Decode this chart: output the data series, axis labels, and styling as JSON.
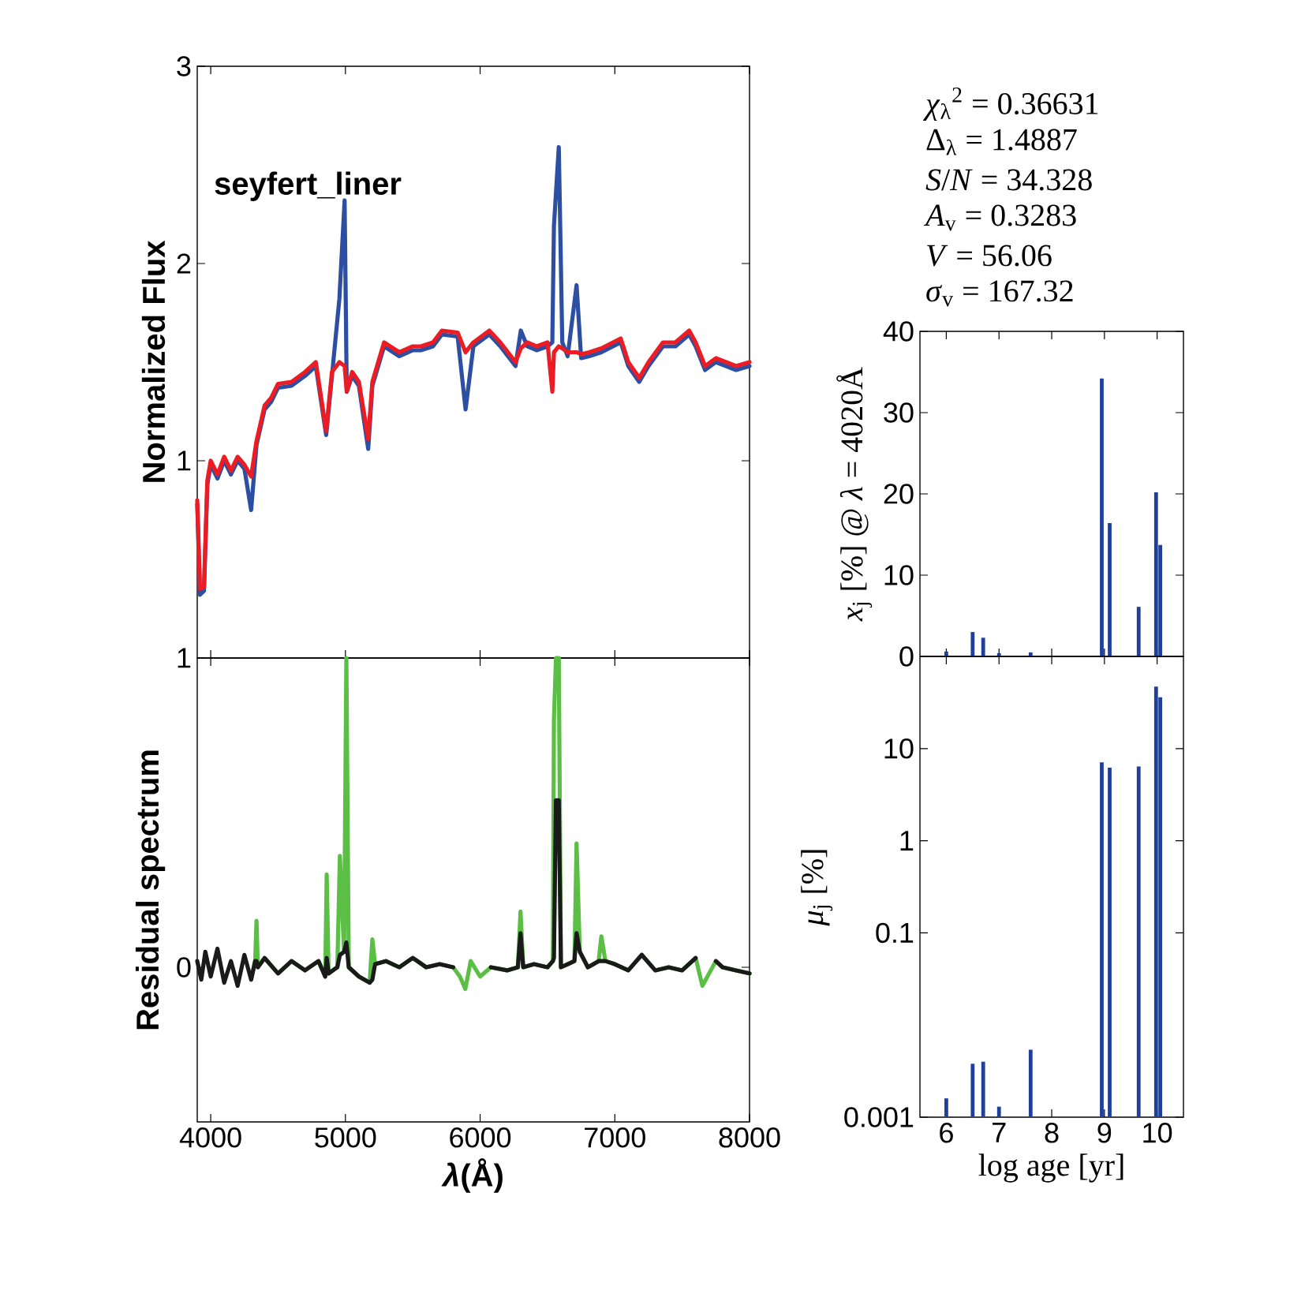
{
  "chart_data": [
    {
      "type": "line",
      "ylabel": "Normalized Flux",
      "annotations": [
        "seyfert_liner"
      ],
      "x": [
        3900,
        3920,
        3950,
        3975,
        4000,
        4050,
        4100,
        4150,
        4200,
        4250,
        4300,
        4340,
        4400,
        4450,
        4500,
        4600,
        4700,
        4780,
        4857,
        4900,
        4955,
        4994,
        5010,
        5050,
        5100,
        5169,
        5200,
        5287,
        5400,
        5500,
        5560,
        5650,
        5716,
        5833,
        5892,
        5950,
        6068,
        6150,
        6263,
        6302,
        6350,
        6419,
        6500,
        6536,
        6548,
        6584,
        6610,
        6650,
        6716,
        6750,
        6810,
        6900,
        7044,
        7100,
        7181,
        7250,
        7357,
        7450,
        7552,
        7600,
        7670,
        7750,
        7826,
        7900,
        8000
      ],
      "series": [
        {
          "color": "#2d4fa3",
          "values": [
            0.78,
            0.32,
            0.34,
            0.88,
            0.98,
            0.91,
            1.0,
            0.93,
            1.0,
            0.96,
            0.75,
            1.08,
            1.26,
            1.3,
            1.37,
            1.38,
            1.43,
            1.48,
            1.13,
            1.43,
            1.82,
            2.32,
            1.35,
            1.43,
            1.38,
            1.06,
            1.38,
            1.58,
            1.53,
            1.56,
            1.56,
            1.58,
            1.64,
            1.63,
            1.26,
            1.58,
            1.64,
            1.58,
            1.48,
            1.66,
            1.58,
            1.56,
            1.58,
            1.6,
            2.19,
            2.59,
            1.6,
            1.53,
            1.89,
            1.52,
            1.53,
            1.55,
            1.6,
            1.48,
            1.4,
            1.48,
            1.58,
            1.58,
            1.64,
            1.58,
            1.46,
            1.5,
            1.48,
            1.46,
            1.48
          ]
        },
        {
          "color": "#ec1c24",
          "values": [
            0.8,
            0.35,
            0.36,
            0.9,
            1.0,
            0.93,
            1.02,
            0.95,
            1.02,
            0.98,
            0.92,
            1.1,
            1.28,
            1.32,
            1.39,
            1.4,
            1.45,
            1.5,
            1.15,
            1.45,
            1.5,
            1.48,
            1.35,
            1.45,
            1.4,
            1.11,
            1.4,
            1.6,
            1.55,
            1.58,
            1.58,
            1.6,
            1.66,
            1.65,
            1.55,
            1.6,
            1.66,
            1.6,
            1.5,
            1.57,
            1.6,
            1.58,
            1.6,
            1.35,
            1.55,
            1.58,
            1.57,
            1.55,
            1.55,
            1.54,
            1.55,
            1.57,
            1.62,
            1.5,
            1.42,
            1.5,
            1.6,
            1.6,
            1.66,
            1.6,
            1.48,
            1.52,
            1.5,
            1.48,
            1.5
          ]
        }
      ],
      "xlim": [
        3900,
        8000
      ],
      "ylim": [
        0,
        3
      ],
      "xticks": [
        4000,
        5000,
        6000,
        7000,
        8000
      ],
      "yticks": [
        1,
        2,
        3
      ],
      "tick_labels": "y"
    },
    {
      "type": "line",
      "xlabel": "*λ*(Å)",
      "ylabel": "Residual spectrum",
      "x": [
        3900,
        3930,
        3960,
        4000,
        4050,
        4100,
        4150,
        4200,
        4250,
        4300,
        4330,
        4340,
        4350,
        4400,
        4500,
        4600,
        4700,
        4800,
        4850,
        4861,
        4875,
        4940,
        4959,
        4990,
        5007,
        5025,
        5100,
        5180,
        5200,
        5220,
        5300,
        5400,
        5500,
        5600,
        5700,
        5800,
        5850,
        5890,
        5930,
        6000,
        6080,
        6200,
        6280,
        6300,
        6320,
        6400,
        6500,
        6540,
        6548,
        6563,
        6584,
        6600,
        6650,
        6700,
        6716,
        6740,
        6800,
        6880,
        6900,
        6930,
        7000,
        7100,
        7200,
        7300,
        7400,
        7500,
        7600,
        7650,
        7700,
        7750,
        7800,
        7900,
        8000
      ],
      "series": [
        {
          "color": "#5bbf45",
          "values": [
            null,
            null,
            null,
            null,
            null,
            null,
            null,
            null,
            null,
            -0.04,
            0.02,
            0.15,
            0.0,
            0.03,
            -0.02,
            0.02,
            -0.01,
            0.02,
            -0.03,
            0.3,
            -0.02,
            0.0,
            0.36,
            0.05,
            1.0,
            0.0,
            -0.03,
            -0.05,
            0.09,
            0.01,
            0.02,
            0.0,
            0.03,
            0.0,
            0.01,
            0.0,
            -0.03,
            -0.07,
            0.02,
            -0.03,
            0.0,
            -0.01,
            0.0,
            0.18,
            0.0,
            0.01,
            0.0,
            0.02,
            0.8,
            1.0,
            1.0,
            0.0,
            0.01,
            0.02,
            0.4,
            0.05,
            0.0,
            0.02,
            0.1,
            0.02,
            0.01,
            -0.01,
            0.04,
            -0.01,
            0.0,
            -0.01,
            0.03,
            -0.06,
            -0.02,
            0.02,
            0.0,
            -0.01,
            -0.02
          ]
        },
        {
          "color": "#1a1a1a",
          "values": [
            0.02,
            -0.04,
            0.05,
            -0.03,
            0.06,
            -0.05,
            0.02,
            -0.06,
            0.04,
            -0.04,
            0.02,
            0.02,
            0.0,
            0.03,
            -0.02,
            0.02,
            -0.01,
            0.02,
            -0.03,
            0.03,
            -0.02,
            0.0,
            0.04,
            0.05,
            0.08,
            0.0,
            -0.03,
            -0.05,
            -0.04,
            0.01,
            0.02,
            0.0,
            0.03,
            0.0,
            0.01,
            0.0,
            null,
            null,
            null,
            null,
            0.0,
            -0.01,
            0.0,
            0.11,
            0.0,
            0.01,
            0.0,
            0.02,
            0.03,
            0.54,
            0.54,
            0.0,
            0.01,
            0.02,
            0.11,
            0.05,
            0.0,
            0.02,
            0.02,
            0.02,
            0.01,
            -0.01,
            0.04,
            -0.01,
            0.0,
            -0.01,
            0.03,
            null,
            null,
            0.02,
            0.0,
            -0.01,
            -0.02
          ]
        }
      ],
      "xlim": [
        3900,
        8000
      ],
      "ylim": [
        -0.5,
        1
      ],
      "xticks": [
        4000,
        5000,
        6000,
        7000,
        8000
      ],
      "yticks": [
        0,
        1
      ]
    },
    {
      "type": "bar",
      "ylabel": "*x*$_{j}$ [%] @ *λ* = 4020Å",
      "annotations": [
        "*χ*$_{λ}$$^{2}$ = 0.36631",
        "Δ$_{λ}$ = 1.4887",
        "*S*/*N* = 34.328",
        "*A*$_{v}$ = 0.3283",
        "*V* = 56.06",
        "*σ*$_{v}$ = 167.32"
      ],
      "x": [
        6.0,
        6.5,
        6.7,
        7.0,
        7.6,
        8.95,
        9.1,
        9.65,
        9.98,
        10.06
      ],
      "values": [
        0.6,
        3.0,
        2.3,
        0.4,
        0.5,
        34.2,
        16.4,
        6.1,
        20.2,
        13.7
      ],
      "color": "#1f3f9a",
      "xlim": [
        5.5,
        10.5
      ],
      "ylim": [
        0,
        40
      ],
      "xticks": [
        6,
        7,
        8,
        9,
        10
      ],
      "yticks": [
        0,
        10,
        20,
        30,
        40
      ],
      "tick_labels": "y"
    },
    {
      "type": "bar",
      "xlabel": "log age [yr]",
      "ylabel": "*μ*$_{j}$ [%]",
      "x": [
        6.0,
        6.5,
        6.7,
        7.0,
        7.6,
        8.95,
        9.1,
        9.65,
        9.98,
        10.06
      ],
      "values": [
        0.0016,
        0.0038,
        0.004,
        0.0013,
        0.0054,
        7.1,
        6.2,
        6.4,
        47,
        36
      ],
      "color": "#1f3f9a",
      "xlim": [
        5.5,
        10.5
      ],
      "ylim": [
        0.001,
        100
      ],
      "xticks": [
        6,
        7,
        8,
        9,
        10
      ],
      "yticks": [
        0.001,
        0.1,
        1,
        10
      ],
      "log": true
    }
  ]
}
